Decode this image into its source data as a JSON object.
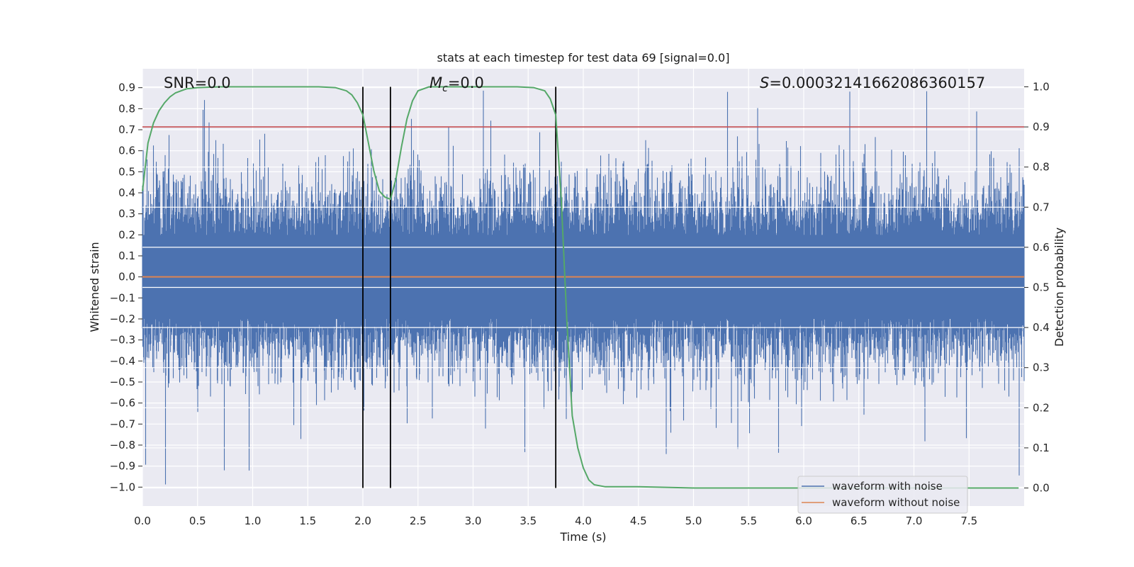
{
  "chart_data": {
    "type": "line",
    "title": "stats at each timestep for test data 69 [signal=0.0]",
    "xlabel": "Time (s)",
    "ylabel": "Whitened strain",
    "ylabel_right": "Detection probability",
    "xlim": [
      0.0,
      8.0
    ],
    "ylim": [
      -1.09,
      0.99
    ],
    "ylim_right": [
      -0.045,
      1.045
    ],
    "x_ticks": [
      "0.0",
      "0.5",
      "1.0",
      "1.5",
      "2.0",
      "2.5",
      "3.0",
      "3.5",
      "4.0",
      "4.5",
      "5.0",
      "5.5",
      "6.0",
      "6.5",
      "7.0",
      "7.5"
    ],
    "y_ticks": [
      "0.9",
      "0.8",
      "0.7",
      "0.6",
      "0.5",
      "0.4",
      "0.3",
      "0.2",
      "0.1",
      "0.0",
      "−0.1",
      "−0.2",
      "−0.3",
      "−0.4",
      "−0.5",
      "−0.6",
      "−0.7",
      "−0.8",
      "−0.9",
      "−1.0"
    ],
    "y_right_ticks": [
      "1.0",
      "0.9",
      "0.8",
      "0.7",
      "0.6",
      "0.5",
      "0.4",
      "0.3",
      "0.2",
      "0.1",
      "0.0"
    ],
    "grid": true,
    "annotations": {
      "snr_label": "SNR=0.0",
      "mc_symbol": "M",
      "mc_subscript": "c",
      "mc_value": "=0.0",
      "s_symbol": "S",
      "s_value": "=0.00032141662086360157"
    },
    "threshold_probability": 0.9,
    "vertical_markers": [
      2.0,
      2.25,
      3.75
    ],
    "series": [
      {
        "name": "waveform with noise",
        "color": "#4c72b0",
        "axis": "left",
        "description_values": {
          "typical_max": 0.5,
          "typical_min": -0.45,
          "peak_max": 0.9,
          "peak_min": -1.0
        }
      },
      {
        "name": "waveform without noise",
        "color": "#dd8452",
        "axis": "left",
        "constant_value": 0.0
      },
      {
        "name": "detection probability",
        "color": "#55a868",
        "axis": "right",
        "x": [
          0.0,
          0.05,
          0.1,
          0.15,
          0.2,
          0.25,
          0.3,
          0.4,
          0.5,
          0.7,
          1.0,
          1.3,
          1.6,
          1.75,
          1.85,
          1.9,
          1.95,
          2.0,
          2.05,
          2.1,
          2.15,
          2.2,
          2.25,
          2.3,
          2.35,
          2.4,
          2.45,
          2.5,
          2.6,
          3.0,
          3.4,
          3.55,
          3.65,
          3.7,
          3.75,
          3.8,
          3.85,
          3.9,
          3.95,
          4.0,
          4.05,
          4.1,
          4.2,
          4.5,
          5.0,
          5.5,
          6.0,
          6.5,
          7.0,
          7.5,
          7.95
        ],
        "values": [
          0.74,
          0.86,
          0.91,
          0.94,
          0.96,
          0.975,
          0.985,
          0.995,
          0.998,
          1.0,
          1.0,
          1.0,
          1.0,
          0.998,
          0.99,
          0.98,
          0.96,
          0.93,
          0.86,
          0.79,
          0.74,
          0.725,
          0.72,
          0.77,
          0.85,
          0.92,
          0.965,
          0.99,
          1.0,
          1.0,
          1.0,
          0.998,
          0.99,
          0.97,
          0.93,
          0.72,
          0.42,
          0.18,
          0.1,
          0.05,
          0.02,
          0.008,
          0.003,
          0.003,
          0.0,
          0.0,
          0.0,
          0.0,
          0.0,
          0.0,
          0.0
        ]
      }
    ],
    "threshold_color": "#c44e52",
    "legend": {
      "position": "lower-right",
      "entries": [
        "waveform with noise",
        "waveform without noise"
      ]
    }
  }
}
